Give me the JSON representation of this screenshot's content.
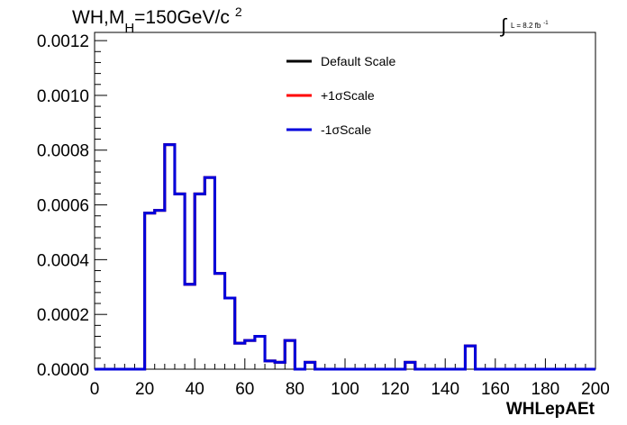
{
  "title": {
    "main": "WH,M",
    "sub": "H",
    "rest": "=150GeV/c",
    "sup": "2"
  },
  "lumi": {
    "symbol": "∫",
    "text": "L = 8.2 fb",
    "sup": "-1"
  },
  "colors": {
    "default": "#000000",
    "plus": "#ff0000",
    "minus": "#0000dd",
    "frame": "#000000"
  },
  "chart_data": {
    "type": "line",
    "style": "step-histogram",
    "xlabel": "WHLepAEt",
    "ylabel": "",
    "xlim": [
      0,
      200
    ],
    "ylim": [
      0,
      0.00123
    ],
    "x_ticks": [
      "0",
      "20",
      "40",
      "60",
      "80",
      "100",
      "120",
      "140",
      "160",
      "180",
      "200"
    ],
    "y_ticks": [
      "0.0000",
      "0.0002",
      "0.0004",
      "0.0006",
      "0.0008",
      "0.0010",
      "0.0012"
    ],
    "grid": false,
    "legend_position": "top-center",
    "bin_width": 4,
    "bin_edges_start": 0,
    "series": [
      {
        "name": "Default Scale",
        "color": "#000000",
        "values": [
          0,
          0,
          0,
          0,
          0,
          0.00057,
          0.00058,
          0.00082,
          0.00064,
          0.00031,
          0.00064,
          0.0007,
          0.00035,
          0.00026,
          9.5e-05,
          0.000105,
          0.00012,
          3e-05,
          2.5e-05,
          0.000105,
          0,
          2.5e-05,
          0,
          0,
          0,
          0,
          0,
          0,
          0,
          0,
          0,
          2.5e-05,
          0,
          0,
          0,
          0,
          0,
          8.5e-05,
          0,
          0,
          0,
          0,
          0,
          0,
          0,
          0,
          0,
          0,
          0,
          0
        ]
      },
      {
        "name": "+1σScale",
        "color": "#ff0000",
        "values": [
          0,
          0,
          0,
          0,
          0,
          0.00057,
          0.00058,
          0.00082,
          0.00064,
          0.00031,
          0.00064,
          0.0007,
          0.00035,
          0.00026,
          9.5e-05,
          0.000105,
          0.00012,
          3e-05,
          2.5e-05,
          0.000105,
          0,
          2.5e-05,
          0,
          0,
          0,
          0,
          0,
          0,
          0,
          0,
          0,
          2.5e-05,
          0,
          0,
          0,
          0,
          0,
          8.5e-05,
          0,
          0,
          0,
          0,
          0,
          0,
          0,
          0,
          0,
          0,
          0,
          0
        ]
      },
      {
        "name": "-1σScale",
        "color": "#0000dd",
        "values": [
          0,
          0,
          0,
          0,
          0,
          0.00057,
          0.00058,
          0.00082,
          0.00064,
          0.00031,
          0.00064,
          0.0007,
          0.00035,
          0.00026,
          9.5e-05,
          0.000105,
          0.00012,
          3e-05,
          2.5e-05,
          0.000105,
          0,
          2.5e-05,
          0,
          0,
          0,
          0,
          0,
          0,
          0,
          0,
          0,
          2.5e-05,
          0,
          0,
          0,
          0,
          0,
          8.5e-05,
          0,
          0,
          0,
          0,
          0,
          0,
          0,
          0,
          0,
          0,
          0,
          0
        ]
      }
    ]
  }
}
